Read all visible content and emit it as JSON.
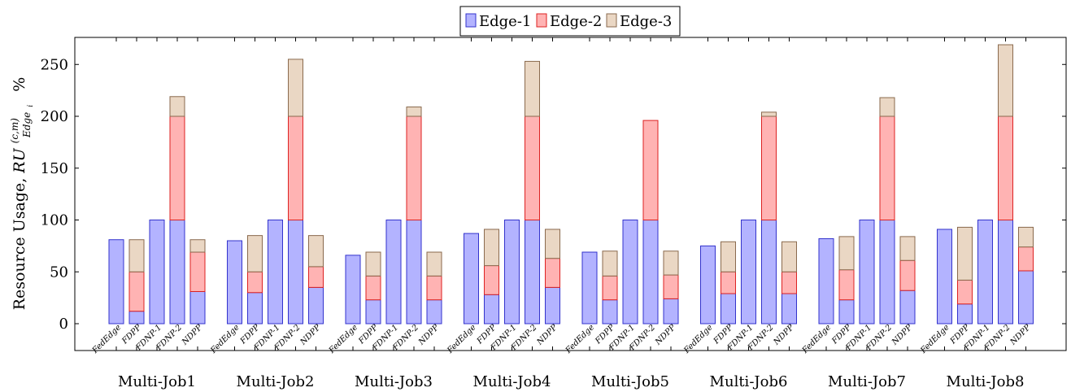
{
  "chart_data": {
    "type": "bar",
    "stacked": true,
    "ylabel_main": "Resource Usage, ",
    "ylabel_var": "RU",
    "ylabel_sup": "(c,m)",
    "ylabel_sub": "Edge",
    "ylabel_subsub": "i",
    "ylabel_unit": "%",
    "ylim": [
      -25,
      275
    ],
    "yticks": [
      "0",
      "50",
      "100",
      "150",
      "200",
      "250"
    ],
    "grid": false,
    "legend_position": "top-center",
    "series": [
      {
        "name": "Edge-1",
        "fill": "#b3b3ff",
        "stroke": "#3333cc"
      },
      {
        "name": "Edge-2",
        "fill": "#ffb3b3",
        "stroke": "#dd2222"
      },
      {
        "name": "Edge-3",
        "fill": "#ead7c4",
        "stroke": "#8a6a4e"
      }
    ],
    "methods": [
      "FedEdge",
      "FDPP",
      "FDNP-1",
      "FDNP-2",
      "NDPP"
    ],
    "groups": [
      {
        "label": "Multi-Job1",
        "bars": [
          [
            81,
            0,
            0
          ],
          [
            12,
            38,
            31
          ],
          [
            100,
            0,
            0
          ],
          [
            100,
            100,
            19
          ],
          [
            31,
            38,
            12
          ]
        ]
      },
      {
        "label": "Multi-Job2",
        "bars": [
          [
            80,
            0,
            0
          ],
          [
            30,
            20,
            35
          ],
          [
            100,
            0,
            0
          ],
          [
            100,
            100,
            55
          ],
          [
            35,
            20,
            30
          ]
        ]
      },
      {
        "label": "Multi-Job3",
        "bars": [
          [
            66,
            0,
            0
          ],
          [
            23,
            23,
            23
          ],
          [
            100,
            0,
            0
          ],
          [
            100,
            100,
            9
          ],
          [
            23,
            23,
            23
          ]
        ]
      },
      {
        "label": "Multi-Job4",
        "bars": [
          [
            87,
            0,
            0
          ],
          [
            28,
            28,
            35
          ],
          [
            100,
            0,
            0
          ],
          [
            100,
            100,
            53
          ],
          [
            35,
            28,
            28
          ]
        ]
      },
      {
        "label": "Multi-Job5",
        "bars": [
          [
            69,
            0,
            0
          ],
          [
            23,
            23,
            24
          ],
          [
            100,
            0,
            0
          ],
          [
            100,
            96,
            0
          ],
          [
            24,
            23,
            23
          ]
        ]
      },
      {
        "label": "Multi-Job6",
        "bars": [
          [
            75,
            0,
            0
          ],
          [
            29,
            21,
            29
          ],
          [
            100,
            0,
            0
          ],
          [
            100,
            100,
            4
          ],
          [
            29,
            21,
            29
          ]
        ]
      },
      {
        "label": "Multi-Job7",
        "bars": [
          [
            82,
            0,
            0
          ],
          [
            23,
            29,
            32
          ],
          [
            100,
            0,
            0
          ],
          [
            100,
            100,
            18
          ],
          [
            32,
            29,
            23
          ]
        ]
      },
      {
        "label": "Multi-Job8",
        "bars": [
          [
            91,
            0,
            0
          ],
          [
            19,
            23,
            51
          ],
          [
            100,
            0,
            0
          ],
          [
            100,
            100,
            69
          ],
          [
            51,
            23,
            19
          ]
        ]
      }
    ]
  }
}
